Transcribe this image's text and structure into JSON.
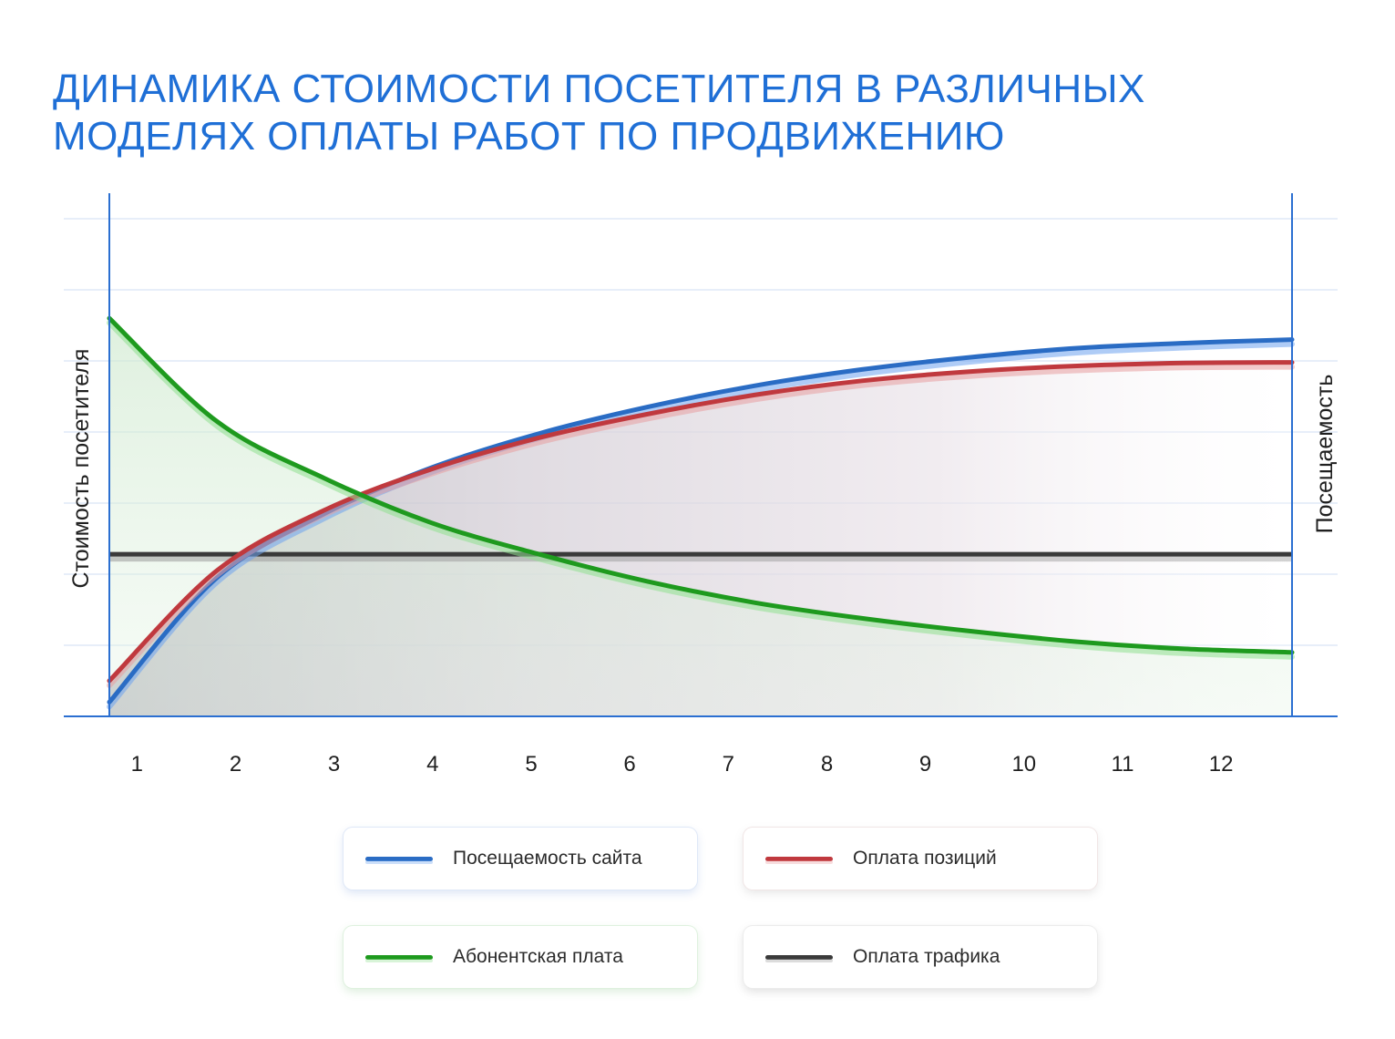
{
  "title_lines": [
    "ДИНАМИКА СТОИМОСТИ ПОСЕТИТЕЛЯ В РАЗЛИЧНЫХ",
    "МОДЕЛЯХ ОПЛАТЫ РАБОТ ПО ПРОДВИЖЕНИЮ"
  ],
  "colors": {
    "title": "#1f6fd6",
    "axis": "#2b6fd1",
    "grid": "#dfe9f7",
    "blue": "#2a6cc4",
    "red": "#c0393e",
    "green": "#1e9a1e",
    "black": "#3a3a3a"
  },
  "chart_data": {
    "type": "line",
    "title": "ДИНАМИКА СТОИМОСТИ ПОСЕТИТЕЛЯ В РАЗЛИЧНЫХ МОДЕЛЯХ ОПЛАТЫ РАБОТ ПО ПРОДВИЖЕНИЮ",
    "ylabel_left": "Стоимость посетителя",
    "ylabel_right": "Посещаемость",
    "xlabel": "",
    "x": [
      1,
      2,
      3,
      4,
      5,
      6,
      7,
      8,
      9,
      10,
      11,
      12
    ],
    "ylim": [
      0,
      7
    ],
    "grid": true,
    "legend_placement": "bottom",
    "series": [
      {
        "name": "Посещаемость сайта",
        "color": "#2a6cc4",
        "values": [
          0.2,
          1.95,
          2.85,
          3.5,
          3.98,
          4.35,
          4.65,
          4.88,
          5.05,
          5.18,
          5.25,
          5.3
        ]
      },
      {
        "name": "Оплата позиций",
        "color": "#c0393e",
        "values": [
          0.5,
          2.05,
          2.9,
          3.48,
          3.92,
          4.25,
          4.52,
          4.72,
          4.85,
          4.93,
          4.97,
          4.98
        ]
      },
      {
        "name": "Абонентская плата",
        "color": "#1e9a1e",
        "values": [
          5.6,
          4.15,
          3.35,
          2.72,
          2.28,
          1.9,
          1.6,
          1.38,
          1.2,
          1.05,
          0.95,
          0.9
        ]
      },
      {
        "name": "Оплата трафика",
        "color": "#3a3a3a",
        "values": [
          2.28,
          2.28,
          2.28,
          2.28,
          2.28,
          2.28,
          2.28,
          2.28,
          2.28,
          2.28,
          2.28,
          2.28
        ]
      }
    ]
  },
  "legend": [
    {
      "label": "Посещаемость сайта",
      "color": "#2a6cc4",
      "glow": "#6ea3ef",
      "variant": "blue"
    },
    {
      "label": "Оплата позиций",
      "color": "#c0393e",
      "glow": "#e89ea0",
      "variant": "red"
    },
    {
      "label": "Абонентская плата",
      "color": "#1e9a1e",
      "glow": "#8fe08f",
      "variant": "green"
    },
    {
      "label": "Оплата трафика",
      "color": "#3a3a3a",
      "glow": "#9a9a9a",
      "variant": "black"
    }
  ]
}
